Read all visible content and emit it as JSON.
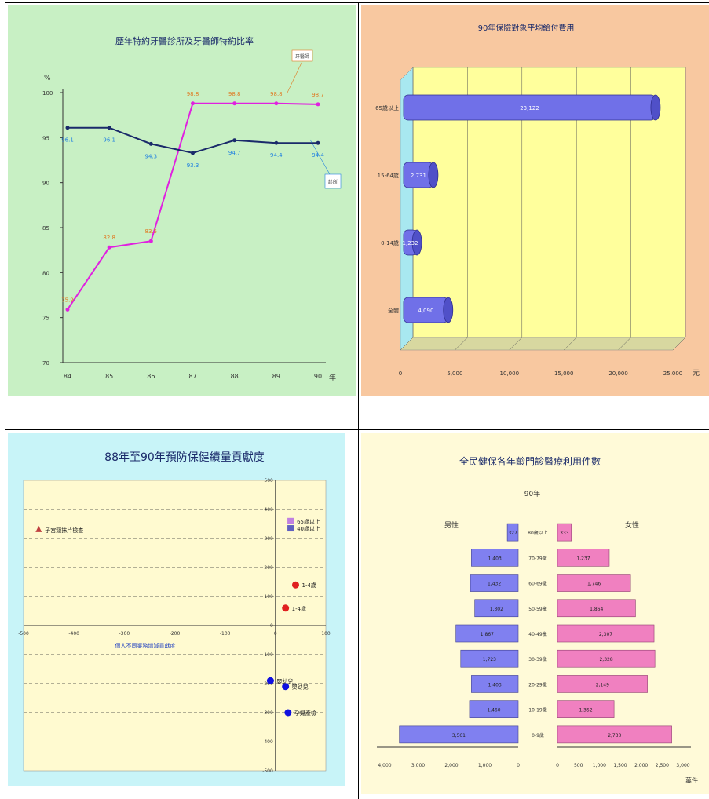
{
  "chart_data": [
    {
      "id": "line",
      "type": "line",
      "title": "歷年特約牙醫診所及牙醫師特約比率",
      "ylabel": "%",
      "xlabel": "年",
      "ylim": [
        70,
        100
      ],
      "yticks": [
        "100",
        "95",
        "90",
        "85",
        "80",
        "75",
        "70"
      ],
      "categories": [
        "84",
        "85",
        "86",
        "87",
        "88",
        "89",
        "90"
      ],
      "series": [
        {
          "name": "牙醫師",
          "color": "#e020e0",
          "labelColor": "#e07820",
          "values": [
            75.9,
            82.8,
            83.5,
            98.8,
            98.8,
            98.8,
            98.7
          ],
          "labels": [
            "75.9",
            "82.8",
            "83.5",
            "98.8",
            "98.8",
            "98.8",
            "98.7"
          ]
        },
        {
          "name": "診所",
          "color": "#1a2a6a",
          "labelColor": "#2080e0",
          "values": [
            96.1,
            96.1,
            94.3,
            93.3,
            94.7,
            94.4,
            94.4
          ],
          "labels": [
            "96.1",
            "96.1",
            "94.3",
            "93.3",
            "94.7",
            "94.4",
            "94.4"
          ]
        }
      ]
    },
    {
      "id": "hbar3d",
      "type": "bar",
      "title": "90年保險對象平均給付費用",
      "categories": [
        "65歲以上",
        "15-64歲",
        "0-14歲",
        "全體"
      ],
      "values": [
        23122,
        2731,
        1232,
        4090
      ],
      "labels": [
        "23,122",
        "2,731",
        "1,232",
        "4,090"
      ],
      "xlim": [
        0,
        25000
      ],
      "xticks": [
        "0",
        "5,000",
        "10,000",
        "15,000",
        "20,000",
        "25,000"
      ],
      "xunit": "元",
      "barColor": "#7070e8"
    },
    {
      "id": "scatter",
      "type": "scatter",
      "title": "88年至90年預防保健績量貢獻度",
      "xlim": [
        -500,
        100
      ],
      "ylim": [
        -500,
        500
      ],
      "xticks": [
        "-500",
        "-400",
        "-300",
        "-200",
        "-100",
        "0",
        "100"
      ],
      "yticks": [
        "500",
        "400",
        "300",
        "200",
        "100",
        "0",
        "-100",
        "-200",
        "-300",
        "-400",
        "-500"
      ],
      "note": "個人不同業務增減貢獻度",
      "points": [
        {
          "label": "子宮頸抹片檢查",
          "x": -470,
          "y": 330,
          "color": "#c04040",
          "shape": "triangle"
        },
        {
          "label": "65歲以上",
          "x": 30,
          "y": 360,
          "color": "#c080e0",
          "shape": "square"
        },
        {
          "label": "40歲以上",
          "x": 30,
          "y": 335,
          "color": "#6060c0",
          "shape": "square"
        },
        {
          "label": "1-4歲",
          "x": 40,
          "y": 140,
          "color": "#e02020",
          "shape": "circle"
        },
        {
          "label": "1-4歲",
          "x": 20,
          "y": 60,
          "color": "#e02020",
          "shape": "circle"
        },
        {
          "label": "嬰幼兒",
          "x": -10,
          "y": -190,
          "color": "#1010e0",
          "shape": "circle"
        },
        {
          "label": "嬰幼兒",
          "x": 20,
          "y": -210,
          "color": "#1010e0",
          "shape": "circle"
        },
        {
          "label": "孕婦產檢",
          "x": 25,
          "y": -300,
          "color": "#1010e0",
          "shape": "circle"
        }
      ]
    },
    {
      "id": "pyramid",
      "type": "bar",
      "title": "全民健保各年齡門診醫療利用件數",
      "subtitle": "90年",
      "xunit": "萬件",
      "leftLabel": "男性",
      "rightLabel": "女性",
      "categories": [
        "80歲以上",
        "70-79歲",
        "60-69歲",
        "50-59歲",
        "40-49歲",
        "30-39歲",
        "20-29歲",
        "10-19歲",
        "0-9歲"
      ],
      "male": [
        327,
        1403,
        1432,
        1302,
        1867,
        1723,
        1403,
        1460,
        3561
      ],
      "female": [
        333,
        1237,
        1746,
        1864,
        2307,
        2328,
        2149,
        1352,
        2730
      ],
      "maleLabels": [
        "327",
        "1,403",
        "1,432",
        "1,302",
        "1,867",
        "1,723",
        "1,403",
        "1,460",
        "3,561"
      ],
      "femaleLabels": [
        "333",
        "1,237",
        "1,746",
        "1,864",
        "2,307",
        "2,328",
        "2,149",
        "1,352",
        "2,730"
      ],
      "leftTicks": [
        "4,000",
        "3,000",
        "2,000",
        "1,000",
        "0"
      ],
      "rightTicks": [
        "0",
        "500",
        "1,000",
        "1,500",
        "2,000",
        "2,500",
        "3,000"
      ],
      "maleColor": "#8080f0",
      "femaleColor": "#f080c0"
    }
  ]
}
